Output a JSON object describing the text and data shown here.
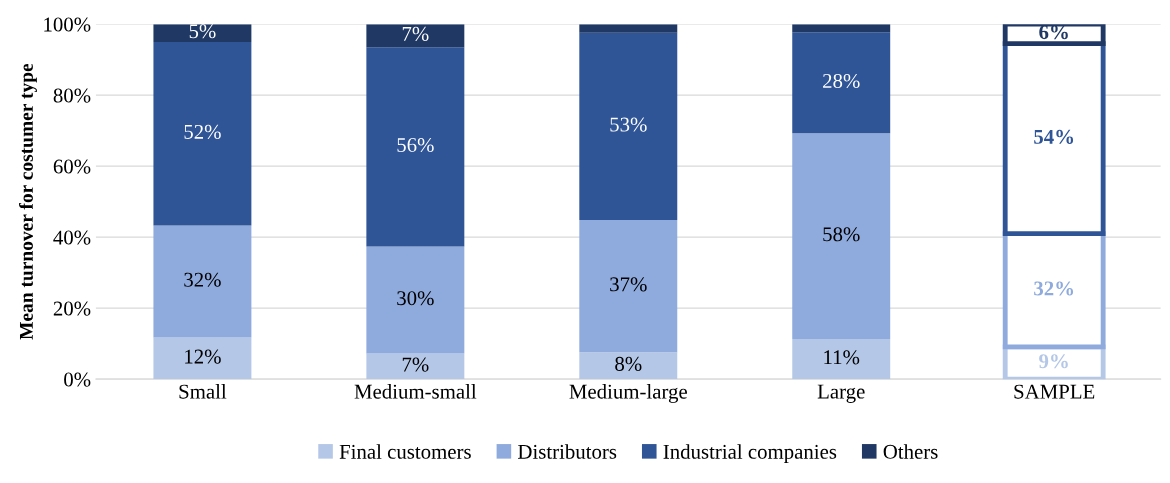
{
  "chart_data": {
    "type": "bar",
    "stacked": true,
    "ylabel": "Mean turnover for costumer type",
    "categories": [
      "Small",
      "Medium-small",
      "Medium-large",
      "Large",
      "SAMPLE"
    ],
    "ylim": [
      0,
      100
    ],
    "yticks": [
      {
        "value": 0,
        "label": "0%"
      },
      {
        "value": 20,
        "label": "20%"
      },
      {
        "value": 40,
        "label": "40%"
      },
      {
        "value": 60,
        "label": "60%"
      },
      {
        "value": 80,
        "label": "80%"
      },
      {
        "value": 100,
        "label": "100%"
      }
    ],
    "grid": "y",
    "legend": "bottom",
    "series": [
      {
        "name": "Final customers",
        "color": "#b4c7e7",
        "colors": [
          "#b4c7e7",
          "#b4c7e7",
          "#b4c7e7",
          "#b4c7e7",
          "#ffffff"
        ],
        "values": [
          11.7,
          7.2,
          7.6,
          11.3,
          9.1
        ],
        "value_labels": [
          "12%",
          "7%",
          "8%",
          "11%",
          "9%"
        ]
      },
      {
        "name": "Distributors",
        "color": "#8faadc",
        "colors": [
          "#8faadc",
          "#8faadc",
          "#8faadc",
          "#8faadc",
          "#ffffff"
        ],
        "values": [
          31.6,
          30.2,
          37.2,
          58.0,
          31.9
        ],
        "value_labels": [
          "32%",
          "30%",
          "37%",
          "58%",
          "32%"
        ]
      },
      {
        "name": "Industrial companies",
        "color": "#2f5597",
        "colors": [
          "#2f5597",
          "#2f5597",
          "#2f5597",
          "#2f5597",
          "#ffffff"
        ],
        "values": [
          51.7,
          56.1,
          52.8,
          28.4,
          53.5
        ],
        "value_labels": [
          "52%",
          "56%",
          "53%",
          "28%",
          "54%"
        ]
      },
      {
        "name": "Others",
        "color": "#203864",
        "colors": [
          "#203864",
          "#203864",
          "#203864",
          "#203864",
          "#ffffff"
        ],
        "values": [
          5.0,
          6.5,
          2.4,
          2.3,
          5.5
        ],
        "value_labels": [
          "5%",
          "7%",
          null,
          null,
          "6%"
        ]
      }
    ]
  }
}
